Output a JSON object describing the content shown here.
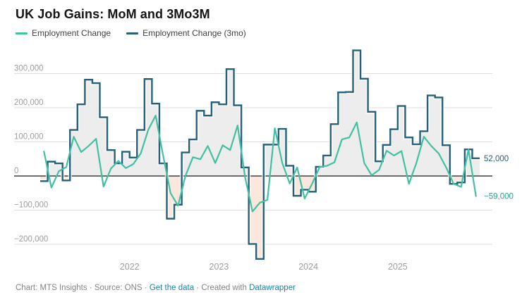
{
  "title": "UK Job Gains: MoM and 3Mo3M",
  "legend": [
    {
      "label": "Employment Change",
      "color": "#41c1a1"
    },
    {
      "label": "Employment Change (3mo)",
      "color": "#26607a"
    }
  ],
  "footer": {
    "part1": "Chart: MTS Insights · Source: ONS · ",
    "link1": "Get the data",
    "part2": " · Created with ",
    "link2": "Datawrapper"
  },
  "chart_data": {
    "type": "line",
    "x": [
      "2021-01",
      "2021-02",
      "2021-03",
      "2021-04",
      "2021-05",
      "2021-06",
      "2021-07",
      "2021-08",
      "2021-09",
      "2021-10",
      "2021-11",
      "2021-12",
      "2022-01",
      "2022-02",
      "2022-03",
      "2022-04",
      "2022-05",
      "2022-06",
      "2022-07",
      "2022-08",
      "2022-09",
      "2022-10",
      "2022-11",
      "2022-12",
      "2023-01",
      "2023-02",
      "2023-03",
      "2023-04",
      "2023-05",
      "2023-06",
      "2023-07",
      "2023-08",
      "2023-09",
      "2023-10",
      "2023-11",
      "2023-12",
      "2024-01",
      "2024-02",
      "2024-03",
      "2024-04",
      "2024-05",
      "2024-06",
      "2024-07",
      "2024-08",
      "2024-09",
      "2024-10",
      "2024-11",
      "2024-12",
      "2025-01",
      "2025-02",
      "2025-03",
      "2025-04",
      "2025-05",
      "2025-06",
      "2025-07",
      "2025-08",
      "2025-09",
      "2025-10",
      "2025-11"
    ],
    "series": [
      {
        "name": "Employment Change",
        "style": "line",
        "color": "#41c1a1",
        "values": [
          72000,
          -34000,
          14000,
          26000,
          115000,
          70000,
          88000,
          109000,
          -31000,
          22000,
          44000,
          23000,
          35000,
          66000,
          135000,
          177000,
          60000,
          -50000,
          -87000,
          0,
          55000,
          49000,
          88000,
          38000,
          90000,
          76000,
          148000,
          -3000,
          -104000,
          -78000,
          -70000,
          140000,
          38000,
          -22000,
          25000,
          -66000,
          -23000,
          26000,
          30000,
          40000,
          107000,
          113000,
          157000,
          38000,
          2000,
          18000,
          74000,
          60000,
          73000,
          -23000,
          38000,
          115000,
          88000,
          66000,
          25000,
          -23000,
          -32000,
          78000,
          -59000
        ]
      },
      {
        "name": "Employment Change (3mo)",
        "style": "step",
        "color": "#26607a",
        "fill_above": "#ededed",
        "fill_below": "#fbe7dc",
        "values": [
          -15000,
          42000,
          37000,
          -13000,
          135000,
          210000,
          282000,
          272000,
          172000,
          76000,
          37000,
          71000,
          54000,
          135000,
          284000,
          212000,
          37000,
          -125000,
          -84000,
          69000,
          107000,
          191000,
          177000,
          216000,
          210000,
          313000,
          207000,
          25000,
          -199000,
          -243000,
          92000,
          92000,
          138000,
          30000,
          -58000,
          -40000,
          -46000,
          27000,
          60000,
          152000,
          245000,
          246000,
          368000,
          285000,
          188000,
          43000,
          91000,
          137000,
          205000,
          113000,
          93000,
          131000,
          236000,
          230000,
          90000,
          -23000,
          -19000,
          78000,
          52000
        ]
      }
    ],
    "y_ticks": [
      {
        "value": 300000,
        "label": "300,000"
      },
      {
        "value": 200000,
        "label": "200,000"
      },
      {
        "value": 100000,
        "label": "100,000"
      },
      {
        "value": 0,
        "label": "0"
      },
      {
        "value": -100000,
        "label": "−100,000"
      },
      {
        "value": -200000,
        "label": "−200,000"
      }
    ],
    "x_year_ticks": [
      {
        "label": "2022",
        "month_index": 12
      },
      {
        "label": "2023",
        "month_index": 24
      },
      {
        "label": "2024",
        "month_index": 36
      },
      {
        "label": "2025",
        "month_index": 48
      }
    ],
    "end_labels": [
      {
        "text": "52,000",
        "value": 52000,
        "color": "#26607a"
      },
      {
        "text": "−59,000",
        "value": -59000,
        "color": "#2f9e86"
      }
    ],
    "ylim": [
      -270000,
      375000
    ],
    "grid": "horizontal",
    "zero_line_color": "#1a1a1a",
    "grid_color": "#dedede",
    "tick_label_color": "#9d9d9d",
    "legend_position": "top"
  }
}
